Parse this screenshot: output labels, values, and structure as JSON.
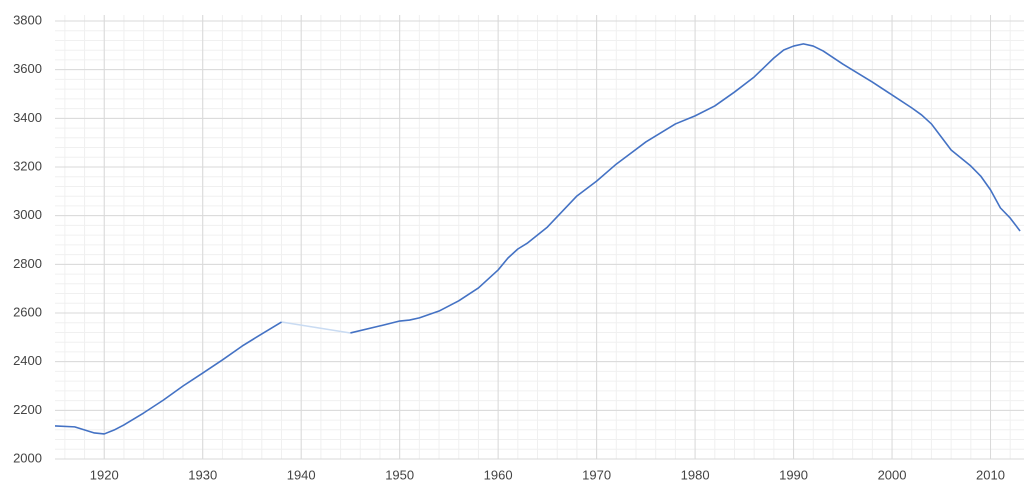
{
  "chart_data": {
    "type": "line",
    "x": [
      1915,
      1917,
      1919,
      1920,
      1921,
      1922,
      1924,
      1926,
      1928,
      1930,
      1932,
      1934,
      1936,
      1938,
      1940,
      1945,
      1948,
      1950,
      1951,
      1952,
      1954,
      1956,
      1958,
      1960,
      1961,
      1962,
      1963,
      1965,
      1968,
      1970,
      1972,
      1975,
      1978,
      1980,
      1982,
      1984,
      1986,
      1988,
      1989,
      1990,
      1991,
      1992,
      1993,
      1995,
      1998,
      2000,
      2002,
      2003,
      2004,
      2006,
      2008,
      2009,
      2010,
      2011,
      2012,
      2013
    ],
    "values": [
      2136,
      2132,
      2107,
      2103,
      2119,
      2140,
      2189,
      2242,
      2300,
      2353,
      2407,
      2464,
      2514,
      2563,
      null,
      2518,
      2547,
      2567,
      2571,
      2580,
      2608,
      2650,
      2703,
      2777,
      2826,
      2863,
      2888,
      2953,
      3081,
      3142,
      3212,
      3303,
      3377,
      3410,
      3451,
      3508,
      3570,
      3648,
      3681,
      3697,
      3706,
      3697,
      3677,
      3623,
      3549,
      3496,
      3443,
      3414,
      3377,
      3270,
      3204,
      3163,
      3106,
      3032,
      2990,
      2937
    ],
    "color": "#4472c4",
    "gap_color": "#c9dbf2",
    "xlim": [
      1915,
      2013.4
    ],
    "ylim": [
      2000,
      3800
    ],
    "xticks": [
      1920,
      1930,
      1940,
      1950,
      1960,
      1970,
      1980,
      1990,
      2000,
      2010
    ],
    "yticks": [
      2000,
      2200,
      2400,
      2600,
      2800,
      3000,
      3200,
      3400,
      3600,
      3800
    ],
    "grid": true,
    "minor_divisions": 5
  }
}
